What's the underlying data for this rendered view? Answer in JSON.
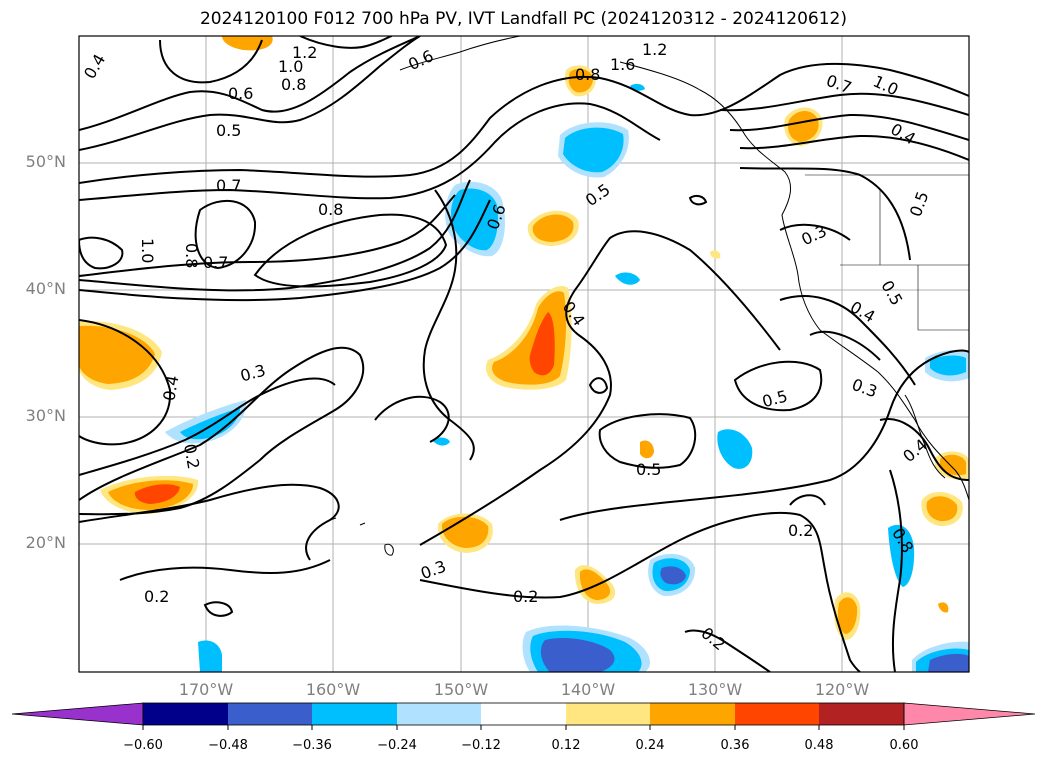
{
  "title": "2024120100 F012 700 hPa PV, IVT Landfall PC (2024120312 - 2024120612)",
  "lat_labels": [
    "50°N",
    "40°N",
    "30°N",
    "20°N"
  ],
  "lon_labels": [
    "170°W",
    "160°W",
    "150°W",
    "140°W",
    "130°W",
    "120°W"
  ],
  "contour_labels": [
    "0.4",
    "1.2",
    "1.0",
    "0.8",
    "0.6",
    "0.5",
    "0.7",
    "1.0",
    "0.8",
    "0.7",
    "0.8",
    "0.6",
    "1.6",
    "1.2",
    "0.8",
    "0.7",
    "1.0",
    "0.4",
    "0.5",
    "0.3",
    "0.5",
    "0.4",
    "0.5",
    "0.4",
    "0.3",
    "0.4",
    "0.5",
    "0.3",
    "0.2",
    "0.3",
    "0.2",
    "0.2",
    "0.2",
    "0.2",
    "0.6",
    "0.5",
    "0.4",
    "0.8"
  ],
  "colorbar": {
    "ticks": [
      "−0.60",
      "−0.48",
      "−0.36",
      "−0.24",
      "−0.12",
      "0.12",
      "0.24",
      "0.36",
      "0.48",
      "0.60"
    ],
    "colors": [
      "#9932cc",
      "#00008b",
      "#3a5fcd",
      "#00bfff",
      "#b0e2ff",
      "#ffffff",
      "#ffe680",
      "#ffa500",
      "#ff4500",
      "#b22222",
      "#ff88aa"
    ]
  },
  "palette": {
    "neg_light": "#b0e2ff",
    "neg_mid": "#00bfff",
    "neg_dark": "#3a5fcd",
    "pos_light": "#ffe680",
    "pos_mid": "#ffa500",
    "pos_dark": "#ff4500"
  }
}
